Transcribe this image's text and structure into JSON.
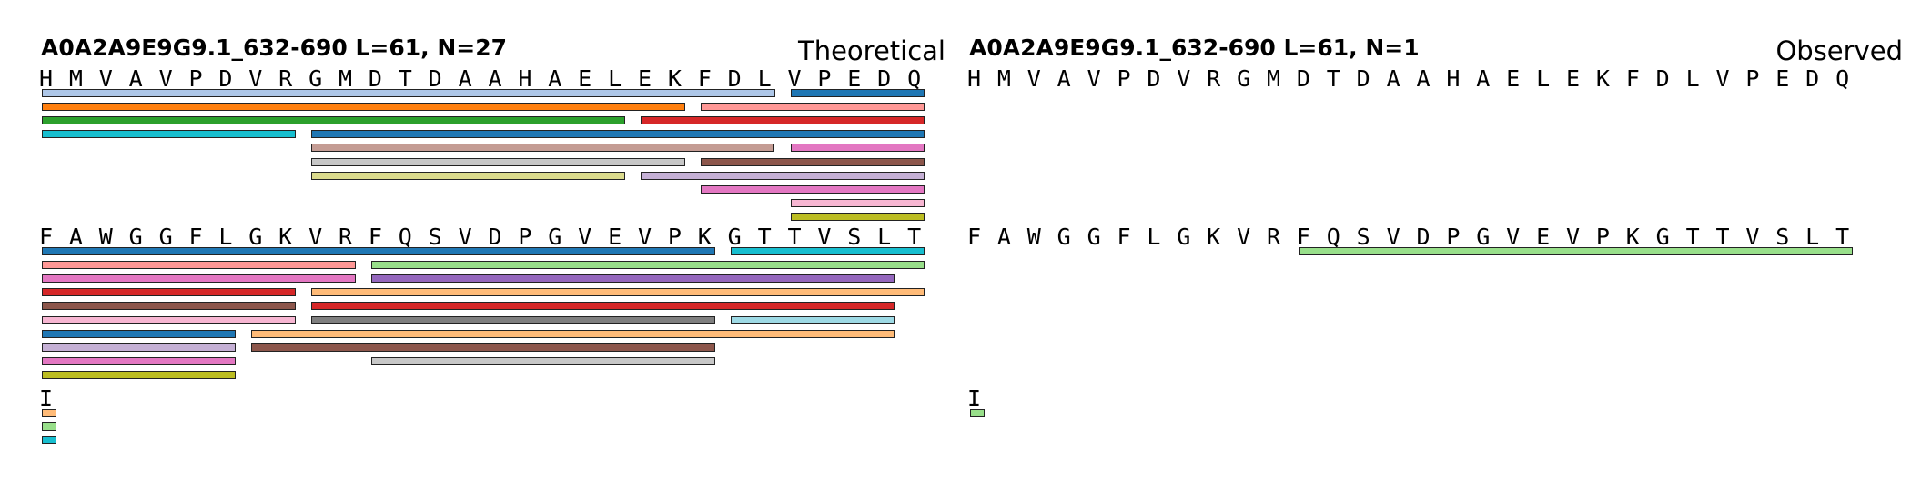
{
  "panels": [
    {
      "title": "A0A2A9E9G9.1_632-690  L=61, N=27",
      "mode": "Theoretical",
      "rows": [
        {
          "sequence": "HMVAVPDVRGMDTDAAHAELEKFDLVPEDQ",
          "peptides": [
            {
              "start": 0,
              "end": 24,
              "color": "#aec7e8"
            },
            {
              "start": 25,
              "end": 29,
              "color": "#1f77b4"
            },
            {
              "start": 0,
              "end": 21,
              "color": "#ff7f0e"
            },
            {
              "start": 22,
              "end": 29,
              "color": "#ff9896"
            },
            {
              "start": 0,
              "end": 19,
              "color": "#2ca02c"
            },
            {
              "start": 20,
              "end": 29,
              "color": "#d62728"
            },
            {
              "start": 0,
              "end": 8,
              "color": "#17becf"
            },
            {
              "start": 9,
              "end": 29,
              "color": "#1f77b4"
            },
            {
              "start": 9,
              "end": 24,
              "color": "#c49c94"
            },
            {
              "start": 25,
              "end": 29,
              "color": "#e377c2"
            },
            {
              "start": 9,
              "end": 21,
              "color": "#c7c7c7"
            },
            {
              "start": 22,
              "end": 29,
              "color": "#8c564b"
            },
            {
              "start": 9,
              "end": 19,
              "color": "#dbdb8d"
            },
            {
              "start": 20,
              "end": 29,
              "color": "#c5b0d5"
            },
            {
              "start": 22,
              "end": 29,
              "color": "#e377c2"
            },
            {
              "start": 25,
              "end": 29,
              "color": "#f7b6d2"
            },
            {
              "start": 25,
              "end": 29,
              "color": "#bcbd22"
            }
          ]
        },
        {
          "sequence": "FAWGGFLGKVRFQSVDPGVEVPKGTTVSLT",
          "peptides": [
            {
              "start": 0,
              "end": 22,
              "color": "#1f77b4"
            },
            {
              "start": 23,
              "end": 29,
              "color": "#17becf"
            },
            {
              "start": 0,
              "end": 10,
              "color": "#ff9896"
            },
            {
              "start": 11,
              "end": 29,
              "color": "#98df8a"
            },
            {
              "start": 0,
              "end": 10,
              "color": "#e377c2"
            },
            {
              "start": 11,
              "end": 28,
              "color": "#9467bd"
            },
            {
              "start": 0,
              "end": 8,
              "color": "#d62728"
            },
            {
              "start": 9,
              "end": 29,
              "color": "#ffbb78"
            },
            {
              "start": 0,
              "end": 8,
              "color": "#8c564b"
            },
            {
              "start": 9,
              "end": 28,
              "color": "#d62728"
            },
            {
              "start": 0,
              "end": 8,
              "color": "#f7b6d2"
            },
            {
              "start": 9,
              "end": 22,
              "color": "#7f7f7f"
            },
            {
              "start": 23,
              "end": 28,
              "color": "#9edae5"
            },
            {
              "start": 0,
              "end": 6,
              "color": "#1f77b4"
            },
            {
              "start": 7,
              "end": 28,
              "color": "#ffbb78"
            },
            {
              "start": 0,
              "end": 6,
              "color": "#c5b0d5"
            },
            {
              "start": 7,
              "end": 22,
              "color": "#8c564b"
            },
            {
              "start": 0,
              "end": 6,
              "color": "#e377c2"
            },
            {
              "start": 11,
              "end": 22,
              "color": "#c7c7c7"
            },
            {
              "start": 0,
              "end": 6,
              "color": "#bcbd22"
            }
          ]
        },
        {
          "sequence": "I",
          "peptides": [
            {
              "start": 0,
              "end": 0,
              "color": "#ffbb78"
            },
            {
              "start": 0,
              "end": 0,
              "color": "#98df8a"
            },
            {
              "start": 0,
              "end": 0,
              "color": "#17becf"
            }
          ]
        }
      ]
    },
    {
      "title": "A0A2A9E9G9.1_632-690  L=61, N=1",
      "mode": "Observed",
      "rows": [
        {
          "sequence": "HMVAVPDVRGMDTDAAHAELEKFDLVPEDQ",
          "peptides": []
        },
        {
          "sequence": "FAWGGFLGKVRFQSVDPGVEVPKGTTVSLT",
          "peptides": [
            {
              "start": 11,
              "end": 29,
              "color": "#98df8a"
            }
          ]
        },
        {
          "sequence": "I",
          "peptides": [
            {
              "start": 0,
              "end": 0,
              "color": "#98df8a"
            }
          ]
        }
      ]
    }
  ]
}
